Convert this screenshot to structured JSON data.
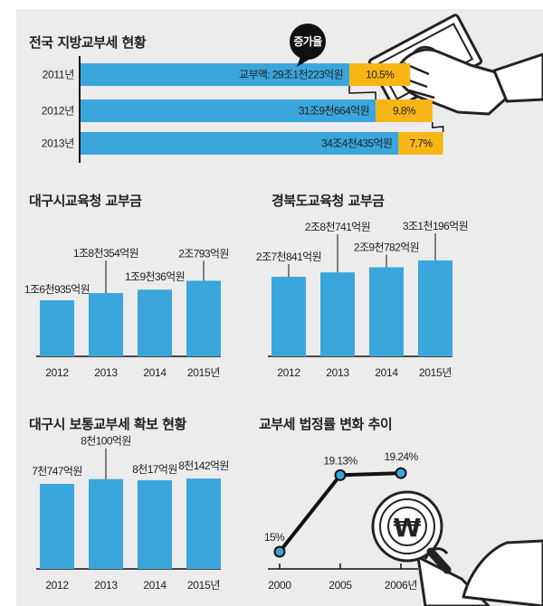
{
  "colors": {
    "blue": "#3aa6dc",
    "yellow": "#f8b616",
    "black": "#111111",
    "bg": "#ececec"
  },
  "icons": [
    "money-bill-hand-icon",
    "magnifier-won-hand-icon"
  ],
  "chart_data": [
    {
      "type": "bar",
      "orientation": "horizontal-stacked",
      "title": "전국 지방교부세 현황",
      "categories": [
        "2011년",
        "2012년",
        "2013년"
      ],
      "value_labels": [
        "교부액: 29조1천223억원",
        "31조9천664억원",
        "34조4천435억원"
      ],
      "values": [
        291223,
        319664,
        344435
      ],
      "growth_labels": [
        "10.5%",
        "9.8%",
        "7.7%"
      ],
      "growth": [
        10.5,
        9.8,
        7.7
      ],
      "callout": "증가율"
    },
    {
      "type": "bar",
      "title": "대구시교육청 교부금",
      "categories": [
        "2012",
        "2013",
        "2014",
        "2015년"
      ],
      "value_labels": [
        "1조6천935억원",
        "1조8천354억원",
        "1조9천36억원",
        "2조793억원"
      ],
      "values": [
        16935,
        18354,
        19036,
        20793
      ]
    },
    {
      "type": "bar",
      "title": "경북도교육청 교부금",
      "categories": [
        "2012",
        "2013",
        "2014",
        "2015년"
      ],
      "value_labels": [
        "2조7천841억원",
        "2조8천741억원",
        "2조9천782억원",
        "3조1천196억원"
      ],
      "values": [
        27841,
        28741,
        29782,
        31196
      ]
    },
    {
      "type": "bar",
      "title": "대구시 보통교부세 확보 현황",
      "categories": [
        "2012",
        "2013",
        "2014",
        "2015년"
      ],
      "value_labels": [
        "7천747억원",
        "8천100억원",
        "8천17억원",
        "8천142억원"
      ],
      "values": [
        7747,
        8100,
        8017,
        8142
      ]
    },
    {
      "type": "line",
      "title": "교부세 법정률 변화 추이",
      "categories": [
        "2000",
        "2005",
        "2006년"
      ],
      "value_labels": [
        "15%",
        "19.13%",
        "19.24%"
      ],
      "values": [
        15,
        19.13,
        19.24
      ]
    }
  ]
}
